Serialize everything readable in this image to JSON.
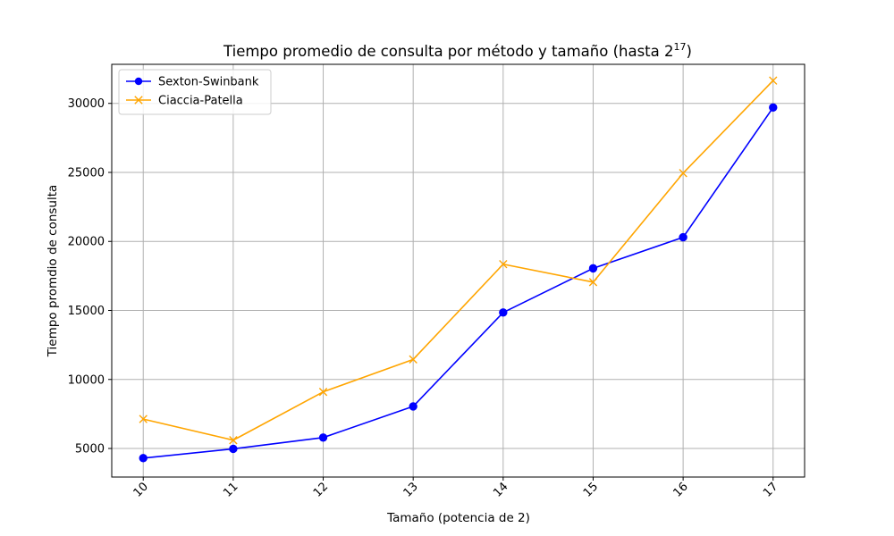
{
  "chart_data": {
    "type": "line",
    "title_main": "Tiempo promedio de consulta por método y tamaño (hasta 2",
    "title_exponent": "17",
    "title_close": ")",
    "xlabel": "Tamaño (potencia de 2)",
    "ylabel": "Tiempo promdio de consulta",
    "x": [
      10,
      11,
      12,
      13,
      14,
      15,
      16,
      17
    ],
    "x_tick_labels": [
      "10",
      "11",
      "12",
      "13",
      "14",
      "15",
      "16",
      "17"
    ],
    "y_ticks": [
      5000,
      10000,
      15000,
      20000,
      25000,
      30000
    ],
    "y_tick_labels": [
      "5000",
      "10000",
      "15000",
      "20000",
      "25000",
      "30000"
    ],
    "xlim": [
      9.65,
      17.35
    ],
    "ylim": [
      2930,
      32830
    ],
    "grid": true,
    "legend_position": "top-left",
    "series": [
      {
        "name": "Sexton-Swinbank",
        "color": "#0000ff",
        "marker": "circle",
        "values": [
          4300,
          4970,
          5790,
          8050,
          14850,
          18050,
          20300,
          29700
        ]
      },
      {
        "name": "Ciaccia-Patella",
        "color": "#ffa500",
        "marker": "x",
        "values": [
          7130,
          5600,
          9100,
          11450,
          18350,
          17050,
          24950,
          31650
        ]
      }
    ]
  }
}
